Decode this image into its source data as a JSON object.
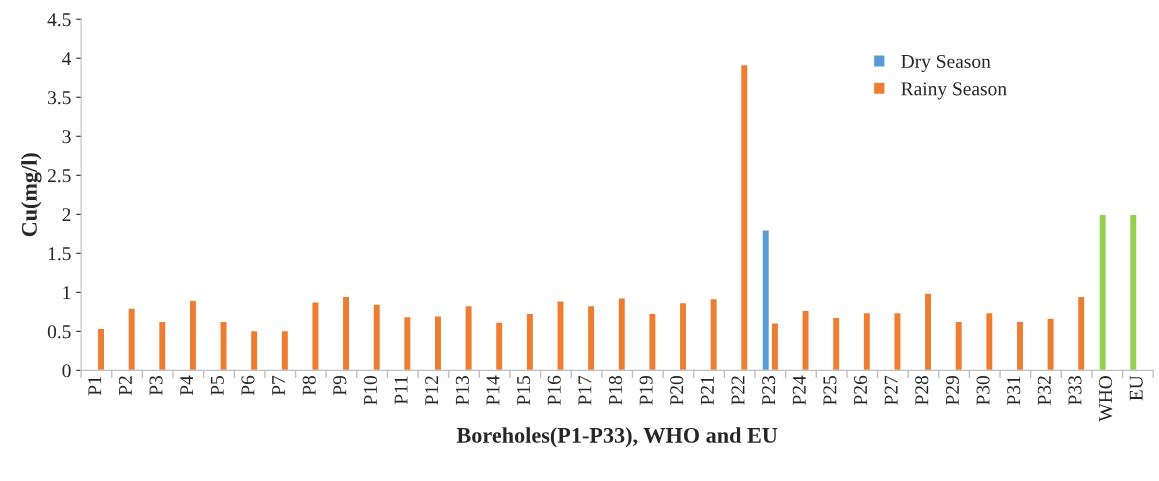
{
  "chart_data": {
    "type": "bar",
    "xlabel": "Boreholes(P1-P33), WHO and EU",
    "ylabel": "Cu(mg/l)",
    "categories": [
      "P1",
      "P2",
      "P3",
      "P4",
      "P5",
      "P6",
      "P7",
      "P8",
      "P9",
      "P10",
      "P11",
      "P12",
      "P13",
      "P14",
      "P15",
      "P16",
      "P17",
      "P18",
      "P19",
      "P20",
      "P21",
      "P22",
      "P23",
      "P24",
      "P25",
      "P26",
      "P27",
      "P28",
      "P29",
      "P30",
      "P31",
      "P32",
      "P33",
      "WHO",
      "EU"
    ],
    "series": [
      {
        "name": "Dry Season",
        "color": "#5b9bd5",
        "colors": [
          "#5b9bd5",
          "#5b9bd5",
          "#5b9bd5",
          "#5b9bd5",
          "#5b9bd5",
          "#5b9bd5",
          "#5b9bd5",
          "#5b9bd5",
          "#5b9bd5",
          "#5b9bd5",
          "#5b9bd5",
          "#5b9bd5",
          "#5b9bd5",
          "#5b9bd5",
          "#5b9bd5",
          "#5b9bd5",
          "#5b9bd5",
          "#5b9bd5",
          "#5b9bd5",
          "#5b9bd5",
          "#5b9bd5",
          "#5b9bd5",
          "#5b9bd5",
          "#5b9bd5",
          "#5b9bd5",
          "#5b9bd5",
          "#5b9bd5",
          "#5b9bd5",
          "#5b9bd5",
          "#5b9bd5",
          "#5b9bd5",
          "#5b9bd5",
          "#5b9bd5",
          "#92d050",
          "#92d050"
        ],
        "values": [
          null,
          null,
          null,
          null,
          null,
          null,
          null,
          null,
          null,
          null,
          null,
          null,
          null,
          null,
          null,
          null,
          null,
          null,
          null,
          null,
          null,
          null,
          1.8,
          null,
          null,
          null,
          null,
          null,
          null,
          null,
          null,
          null,
          null,
          2.0,
          2.0
        ]
      },
      {
        "name": "Rainy Season",
        "color": "#ed7d31",
        "values": [
          0.54,
          0.8,
          0.63,
          0.9,
          0.63,
          0.51,
          0.51,
          0.88,
          0.95,
          0.85,
          0.69,
          0.7,
          0.83,
          0.62,
          0.73,
          0.89,
          0.83,
          0.93,
          0.73,
          0.87,
          0.92,
          3.92,
          0.61,
          0.77,
          0.68,
          0.74,
          0.74,
          0.99,
          0.63,
          0.74,
          0.63,
          0.67,
          0.95,
          null,
          null
        ]
      }
    ],
    "ylim": [
      0,
      4.5
    ],
    "yticks": [
      0,
      0.5,
      1,
      1.5,
      2,
      2.5,
      3,
      3.5,
      4,
      4.5
    ],
    "grid": false,
    "legend": "top right"
  }
}
